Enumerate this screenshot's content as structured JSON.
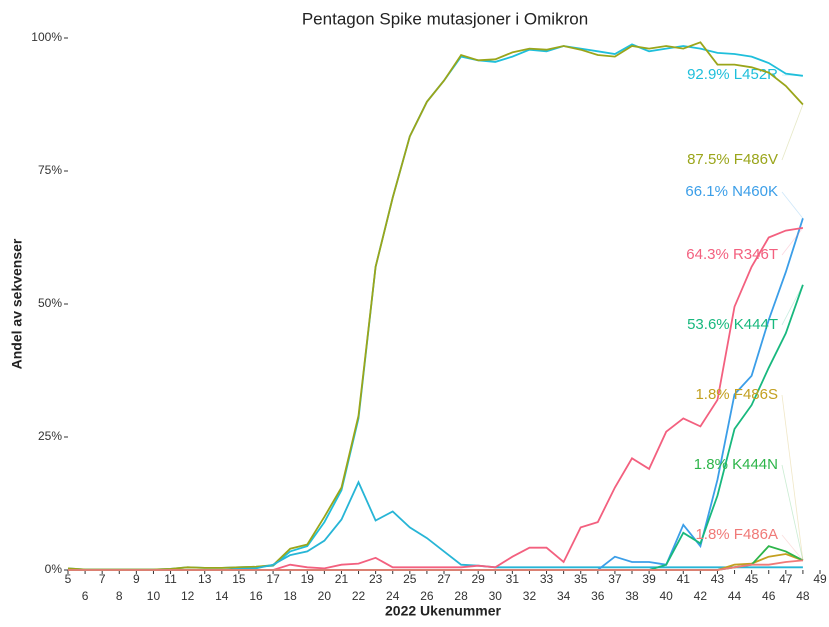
{
  "chart_data": {
    "type": "line",
    "title": "Pentagon Spike mutasjoner i Omikron",
    "x_label": "2022 Ukenummer",
    "y_label": "Andel av sekvenser",
    "x": [
      5,
      6,
      7,
      8,
      9,
      10,
      11,
      12,
      13,
      14,
      15,
      16,
      17,
      18,
      19,
      20,
      21,
      22,
      23,
      24,
      25,
      26,
      27,
      28,
      29,
      30,
      31,
      32,
      33,
      34,
      35,
      36,
      37,
      38,
      39,
      40,
      41,
      42,
      43,
      44,
      45,
      46,
      47,
      48
    ],
    "xlim": [
      5,
      49
    ],
    "xticks": [
      5,
      6,
      7,
      8,
      9,
      10,
      11,
      12,
      13,
      14,
      15,
      16,
      17,
      18,
      19,
      20,
      21,
      22,
      23,
      24,
      25,
      26,
      27,
      28,
      29,
      30,
      31,
      32,
      33,
      34,
      35,
      36,
      37,
      38,
      39,
      40,
      41,
      42,
      43,
      44,
      45,
      46,
      47,
      48,
      49
    ],
    "ylim": [
      0,
      100
    ],
    "yticks": [
      {
        "value": 0,
        "label": "0%"
      },
      {
        "value": 25,
        "label": "25%"
      },
      {
        "value": 50,
        "label": "50%"
      },
      {
        "value": 75,
        "label": "75%"
      },
      {
        "value": 100,
        "label": "100%"
      }
    ],
    "series": [
      {
        "name": "L452R",
        "label": "92.9% L452R",
        "color": "#1fbfdb",
        "values": [
          0.3,
          0.1,
          0.1,
          0.1,
          0.1,
          0.1,
          0.2,
          0.5,
          0.4,
          0.4,
          0.5,
          0.6,
          0.8,
          3.5,
          4.5,
          9,
          15,
          28.5,
          57,
          70,
          81.5,
          88,
          92,
          96.5,
          95.8,
          95.5,
          96.5,
          97.8,
          97.5,
          98.5,
          98,
          97.5,
          97,
          98.8,
          97.5,
          98,
          98.5,
          98,
          97.2,
          97,
          96.5,
          95.3,
          93.3,
          92.9
        ]
      },
      {
        "name": "F486V",
        "label": "87.5% F486V",
        "color": "#9aa51a",
        "values": [
          0.3,
          0.1,
          0.1,
          0.1,
          0.1,
          0.1,
          0.2,
          0.5,
          0.4,
          0.4,
          0.5,
          0.6,
          0.9,
          4,
          4.8,
          10,
          15.5,
          29,
          57,
          70,
          81.5,
          88,
          92,
          96.8,
          95.8,
          96,
          97.3,
          98,
          97.8,
          98.5,
          97.8,
          96.8,
          96.5,
          98.5,
          98,
          98.5,
          98,
          99.2,
          95,
          95,
          94.5,
          93.5,
          91,
          87.5
        ]
      },
      {
        "color": "#27b5d6",
        "values": [
          0,
          0,
          0,
          0,
          0,
          0,
          0,
          0,
          0,
          0,
          0.2,
          0.3,
          1,
          2.8,
          3.5,
          5.5,
          9.5,
          16.5,
          9.3,
          11,
          8,
          6,
          3.5,
          1,
          0.8,
          0.5,
          0.5,
          0.5,
          0.5,
          0.5,
          0.5,
          0.5,
          0.5,
          0.5,
          0.5,
          0.5,
          0.5,
          0.5,
          0.5,
          0.5,
          0.5,
          0.5,
          0.5,
          0.5
        ]
      },
      {
        "name": "N460K",
        "label": "66.1% N460K",
        "color": "#3b9ee8",
        "values": [
          0,
          0,
          0,
          0,
          0,
          0,
          0,
          0,
          0,
          0,
          0,
          0,
          0,
          0,
          0,
          0,
          0,
          0,
          0,
          0,
          0,
          0,
          0,
          0,
          0,
          0,
          0,
          0,
          0,
          0,
          0,
          0,
          2.5,
          1.5,
          1.5,
          1,
          8.5,
          4.5,
          17,
          33,
          36.5,
          47,
          56,
          66.1
        ]
      },
      {
        "name": "R346T",
        "label": "64.3% R346T",
        "color": "#f3607f",
        "values": [
          0,
          0,
          0,
          0,
          0,
          0,
          0,
          0,
          0,
          0,
          0,
          0,
          0,
          1,
          0.5,
          0.3,
          1,
          1.2,
          2.3,
          0.5,
          0.5,
          0.5,
          0.5,
          0.5,
          0.8,
          0.5,
          2.5,
          4.2,
          4.2,
          1.5,
          8,
          9,
          15.5,
          21,
          19,
          26,
          28.5,
          27,
          32,
          49.5,
          57,
          62.5,
          63.8,
          64.3
        ]
      },
      {
        "name": "K444T",
        "label": "53.6% K444T",
        "color": "#18b87e",
        "values": [
          0,
          0,
          0,
          0,
          0,
          0,
          0,
          0,
          0,
          0,
          0,
          0,
          0,
          0,
          0,
          0,
          0,
          0,
          0,
          0,
          0,
          0,
          0,
          0,
          0,
          0,
          0,
          0,
          0,
          0,
          0,
          0,
          0,
          0,
          0,
          1,
          7,
          5,
          14,
          26.5,
          31,
          38,
          44.5,
          53.6
        ]
      },
      {
        "name": "F486S",
        "label": "1.8% F486S",
        "color": "#c3a020",
        "values": [
          0,
          0,
          0,
          0,
          0,
          0,
          0,
          0,
          0,
          0,
          0,
          0,
          0,
          0,
          0,
          0,
          0,
          0,
          0,
          0,
          0,
          0,
          0,
          0,
          0,
          0,
          0,
          0,
          0,
          0,
          0,
          0,
          0,
          0,
          0,
          0,
          0,
          0,
          0,
          1,
          1.2,
          2.5,
          3,
          1.8
        ]
      },
      {
        "name": "K444N",
        "label": "1.8% K444N",
        "color": "#2db54a",
        "values": [
          0,
          0,
          0,
          0,
          0,
          0,
          0,
          0,
          0,
          0,
          0,
          0,
          0,
          0,
          0,
          0,
          0,
          0,
          0,
          0,
          0,
          0,
          0,
          0,
          0,
          0,
          0,
          0,
          0,
          0,
          0,
          0,
          0,
          0,
          0,
          0,
          0,
          0,
          0,
          0.5,
          1,
          4.5,
          3.5,
          1.8
        ]
      },
      {
        "name": "F486A",
        "label": "1.8% F486A",
        "color": "#f07a78",
        "values": [
          0,
          0,
          0,
          0,
          0,
          0,
          0,
          0,
          0,
          0,
          0,
          0,
          0,
          0,
          0,
          0,
          0,
          0,
          0,
          0,
          0,
          0,
          0,
          0,
          0,
          0,
          0,
          0,
          0,
          0,
          0,
          0,
          0,
          0,
          0,
          0,
          0,
          0,
          0,
          0.5,
          1,
          1,
          1.5,
          1.8
        ]
      }
    ]
  }
}
